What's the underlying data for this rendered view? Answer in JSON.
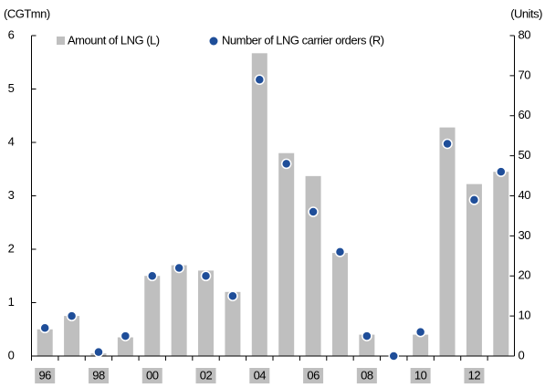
{
  "chart_data": {
    "type": "bar_dot",
    "y_label": "(CGTmn)",
    "y2_label": "(Units)",
    "categories": [
      "96",
      null,
      "98",
      null,
      "00",
      null,
      "02",
      null,
      "04",
      null,
      "06",
      null,
      "08",
      null,
      "10",
      null,
      "12",
      null
    ],
    "series": [
      {
        "name": "Amount of LNG (L)",
        "color": "#bfbfbf",
        "values": [
          0.5,
          0.75,
          0.05,
          0.35,
          1.5,
          1.7,
          1.6,
          1.2,
          5.67,
          3.8,
          3.37,
          1.93,
          0.4,
          0,
          0.4,
          4.28,
          3.22,
          3.45
        ]
      },
      {
        "name": "Number of LNG carrier orders (R)",
        "color": "#1f4e99",
        "axis": "y2",
        "values": [
          7,
          10,
          1,
          5,
          20,
          22,
          20,
          15,
          69,
          48,
          36,
          26,
          5,
          0,
          6,
          53,
          39,
          46
        ]
      }
    ],
    "ylim": [
      0,
      6
    ],
    "yticks": [
      0,
      1,
      2,
      3,
      4,
      5,
      6
    ],
    "y2lim": [
      0,
      80
    ],
    "y2ticks": [
      0,
      10,
      20,
      30,
      40,
      50,
      60,
      70,
      80
    ],
    "legend": "top"
  }
}
